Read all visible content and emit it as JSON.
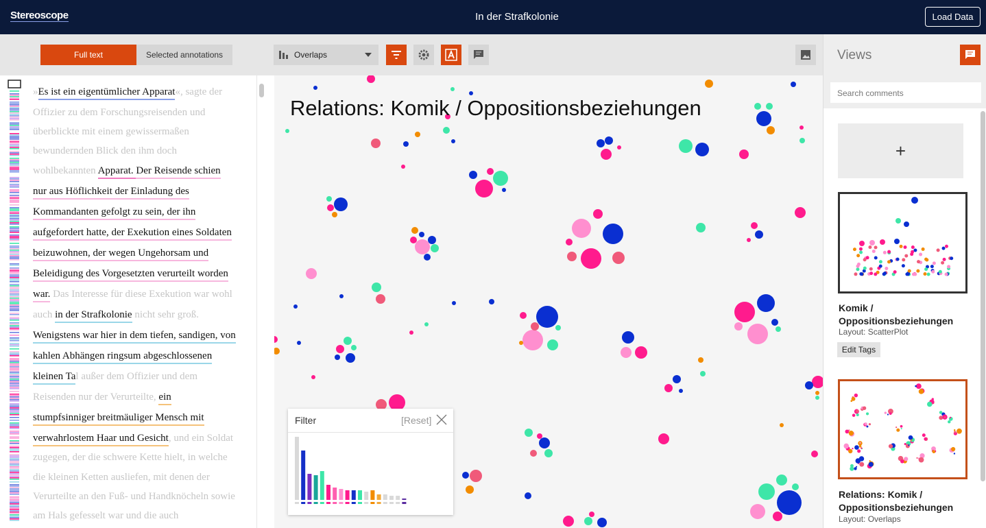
{
  "header": {
    "logo": "Stereoscope",
    "title": "In der Strafkolonie",
    "load_button": "Load Data"
  },
  "toolbar": {
    "tabs": [
      "Full text",
      "Selected annotations"
    ],
    "layout_select": "Overlaps"
  },
  "text": {
    "lines": [
      [
        {
          "text": "»",
          "active": false
        },
        {
          "text": "Es ist ein eigentümlicher Apparat",
          "active": true,
          "underline": "#8aa0e8"
        },
        {
          "text": "«, sagte der",
          "active": false
        }
      ],
      [
        {
          "text": "Offizier zu dem Forschungsreisenden und",
          "active": false
        }
      ],
      [
        {
          "text": "überblickte mit einem gewissermaßen",
          "active": false
        }
      ],
      [
        {
          "text": "bewundernden Blick den ihm doch",
          "active": false
        }
      ],
      [
        {
          "text": "wohlbekannten ",
          "active": false
        },
        {
          "text": "Apparat. ",
          "active": true,
          "underline": "#f07ac0"
        },
        {
          "text": "Der Reisende schien",
          "active": true,
          "underline": "#f7b7de"
        }
      ],
      [
        {
          "text": "nur aus Höflichkeit der Einladung des",
          "active": true,
          "underline": "#f7b7de"
        }
      ],
      [
        {
          "text": "Kommandanten gefolgt zu sein, der ihn",
          "active": true,
          "underline": "#f7b7de"
        }
      ],
      [
        {
          "text": "aufgefordert hatte, der Exekution eines Soldaten",
          "active": true,
          "underline": "#f7b7de"
        }
      ],
      [
        {
          "text": "beizuwohnen, der wegen Ungehorsam und",
          "active": true,
          "underline": "#f7b7de"
        }
      ],
      [
        {
          "text": "Beleidigung des Vorgesetzten verurteilt worden",
          "active": true,
          "underline": "#f7b7de"
        }
      ],
      [
        {
          "text": "war.",
          "active": true,
          "underline": "#f7b7de"
        },
        {
          "text": " Das Interesse für diese Exekution war wohl",
          "active": false
        }
      ],
      [
        {
          "text": "auch ",
          "active": false
        },
        {
          "text": "in der Strafkolonie",
          "active": true,
          "underline": "#9ad6e8"
        },
        {
          "text": " nicht sehr groß.",
          "active": false
        }
      ],
      [
        {
          "text": "Wenigstens war hier in dem tiefen, sandigen, von",
          "active": true,
          "underline": "#9ad6e8"
        }
      ],
      [
        {
          "text": "kahlen Abhängen ringsum abgeschlossenen",
          "active": true,
          "underline": "#9ad6e8"
        }
      ],
      [
        {
          "text": "kleinen Ta",
          "active": true,
          "underline": "#9ad6e8"
        },
        {
          "text": "l außer dem Offizier und dem",
          "active": false
        }
      ],
      [
        {
          "text": "Reisenden nur der Verurteilte, ",
          "active": false
        },
        {
          "text": "ein",
          "active": true,
          "underline": "#f5c27a"
        }
      ],
      [
        {
          "text": "stumpfsinniger breitmäuliger Mensch mit",
          "active": true,
          "underline": "#f5c27a"
        }
      ],
      [
        {
          "text": "verwahrlostem Haar und Gesicht",
          "active": true,
          "underline": "#f5c27a"
        },
        {
          "text": ", und ein Soldat",
          "active": false
        }
      ],
      [
        {
          "text": "zugegen, der die schwere Kette hielt, in welche",
          "active": false
        }
      ],
      [
        {
          "text": "die kleinen Ketten ausliefen, mit denen der",
          "active": false
        }
      ],
      [
        {
          "text": "Verurteilte an den Fuß- und Handknöcheln sowie",
          "active": false
        }
      ],
      [
        {
          "text": "am Hals gefesselt war und die auch",
          "active": false
        }
      ]
    ]
  },
  "visualization": {
    "title": "Relations: Komik / Oppositionsbeziehungen"
  },
  "filter": {
    "title": "Filter",
    "reset": "[Reset]",
    "bars": [
      {
        "value": 92,
        "color": "#d9d9d9"
      },
      {
        "value": 72,
        "color": "#1430c8"
      },
      {
        "value": 38,
        "color": "#7b2fbe"
      },
      {
        "value": 36,
        "color": "#19a79a"
      },
      {
        "value": 42,
        "color": "#3ee6a8"
      },
      {
        "value": 22,
        "color": "#ff1b8d"
      },
      {
        "value": 18,
        "color": "#ff5fb0"
      },
      {
        "value": 16,
        "color": "#ff8fcf"
      },
      {
        "value": 14,
        "color": "#ff1b8d"
      },
      {
        "value": 14,
        "color": "#1430c8"
      },
      {
        "value": 14,
        "color": "#3ee6a8"
      },
      {
        "value": 12,
        "color": "#d9d9d9"
      },
      {
        "value": 14,
        "color": "#f28c00"
      },
      {
        "value": 8,
        "color": "#f2a93b"
      },
      {
        "value": 8,
        "color": "#d9d9d9"
      },
      {
        "value": 6,
        "color": "#d9d9d9"
      },
      {
        "value": 6,
        "color": "#d9d9d9"
      },
      {
        "value": 2,
        "color": "#5a2ca0"
      }
    ]
  },
  "views": {
    "title": "Views",
    "search_placeholder": "Search comments",
    "add": "+",
    "cards": [
      {
        "title": "Komik / Oppositionsbeziehungen",
        "layout": "Layout: ScatterPlot",
        "button": "Edit Tags"
      },
      {
        "title": "Relations: Komik / Oppositionsbeziehungen",
        "layout": "Layout: Overlaps"
      }
    ]
  }
}
